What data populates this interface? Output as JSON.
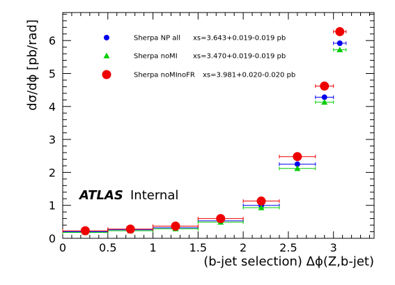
{
  "chart_data": {
    "type": "scatter",
    "title": "",
    "xlabel": "(b-jet selection) Δϕ(Z,b-jet)",
    "ylabel": "dσ/dϕ [pb/rad]",
    "xlim": [
      0,
      3.45
    ],
    "ylim": [
      0,
      6.85
    ],
    "x_ticks": [
      "0",
      "0.5",
      "1",
      "1.5",
      "2",
      "2.5",
      "3"
    ],
    "y_ticks": [
      "0",
      "1",
      "2",
      "3",
      "4",
      "5",
      "6"
    ],
    "grid": false,
    "legend_position": "top-left",
    "annotation": {
      "experiment": "ATLAS",
      "status": "Internal"
    },
    "series": [
      {
        "name": "Sherpa NP all",
        "xs_label": "xs=3.643+0.019-0.019 pb",
        "marker": "circle",
        "color": "#0000ee",
        "x": [
          0.25,
          0.75,
          1.25,
          1.75,
          2.2,
          2.6,
          2.9,
          3.07
        ],
        "xerr_lo": [
          0.25,
          0.25,
          0.25,
          0.25,
          0.2,
          0.2,
          0.1,
          0.07
        ],
        "xerr_hi": [
          0.25,
          0.25,
          0.25,
          0.25,
          0.2,
          0.2,
          0.1,
          0.07
        ],
        "y": [
          0.2,
          0.26,
          0.32,
          0.53,
          1.0,
          2.25,
          4.28,
          5.92
        ]
      },
      {
        "name": "Sherpa noMI",
        "xs_label": "xs=3.470+0.019-0.019 pb",
        "marker": "triangle",
        "color": "#00cc00",
        "x": [
          0.25,
          0.75,
          1.25,
          1.75,
          2.2,
          2.6,
          2.9,
          3.07
        ],
        "xerr_lo": [
          0.25,
          0.25,
          0.25,
          0.25,
          0.2,
          0.2,
          0.1,
          0.07
        ],
        "xerr_hi": [
          0.25,
          0.25,
          0.25,
          0.25,
          0.2,
          0.2,
          0.1,
          0.07
        ],
        "y": [
          0.18,
          0.23,
          0.29,
          0.49,
          0.93,
          2.12,
          4.13,
          5.72
        ]
      },
      {
        "name": "Sherpa noMInoFR",
        "xs_label": "xs=3.981+0.020-0.020 pb",
        "marker": "circle-large",
        "color": "#ee0000",
        "x": [
          0.25,
          0.75,
          1.25,
          1.75,
          2.2,
          2.6,
          2.9,
          3.07
        ],
        "xerr_lo": [
          0.25,
          0.25,
          0.25,
          0.25,
          0.2,
          0.2,
          0.1,
          0.07
        ],
        "xerr_hi": [
          0.25,
          0.25,
          0.25,
          0.25,
          0.2,
          0.2,
          0.1,
          0.07
        ],
        "y": [
          0.23,
          0.28,
          0.37,
          0.6,
          1.13,
          2.48,
          4.62,
          6.27
        ]
      }
    ]
  }
}
